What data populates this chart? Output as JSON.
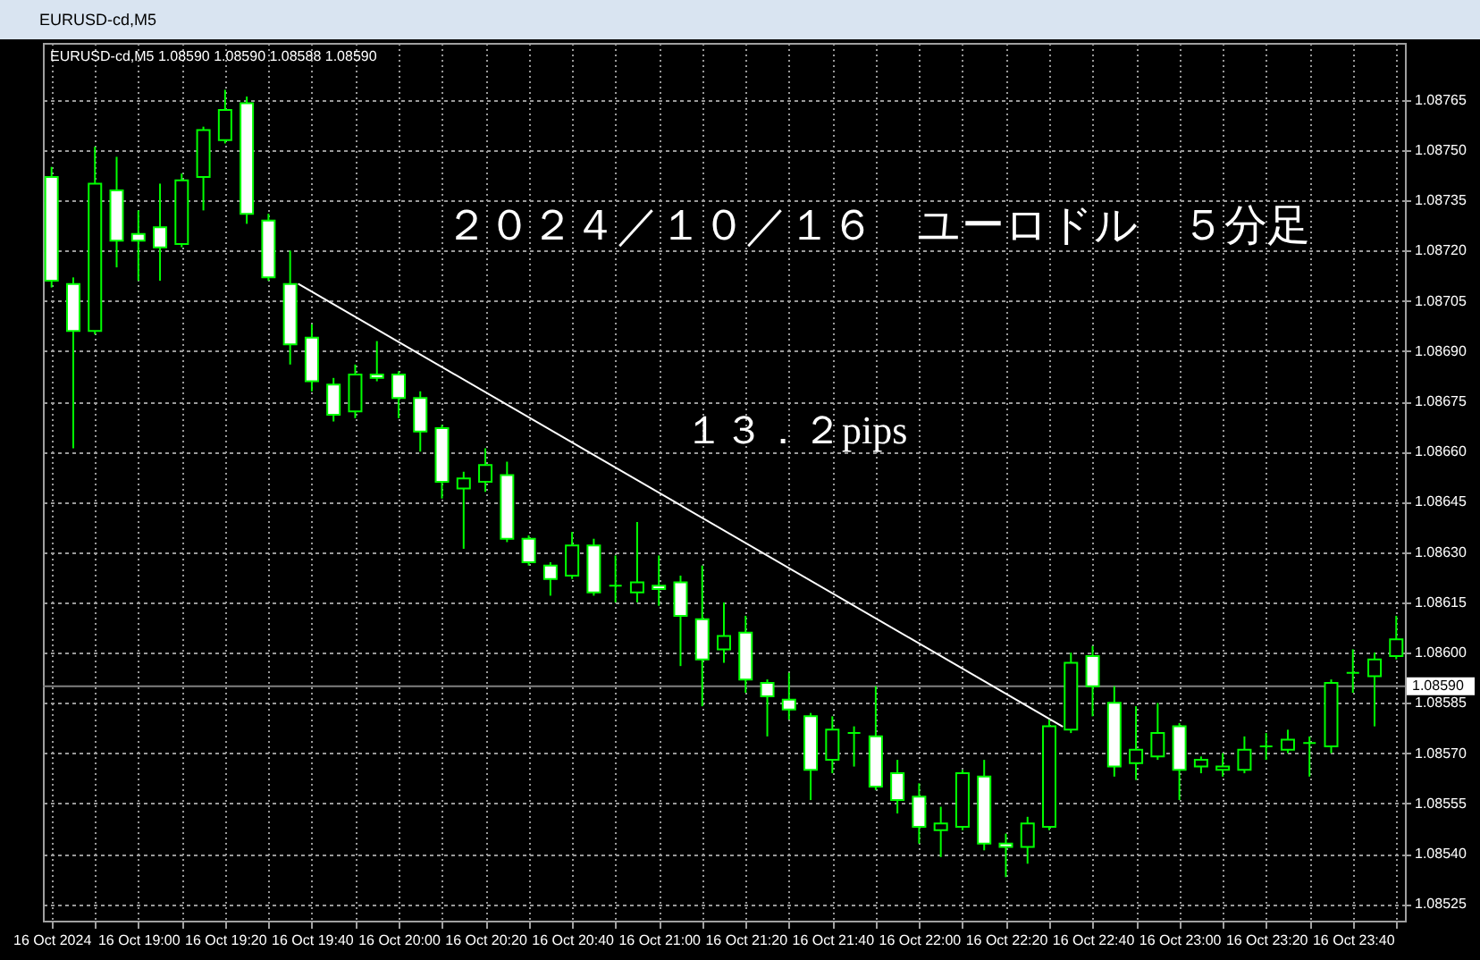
{
  "chart_data": {
    "type": "candlestick",
    "title": "EURUSD-cd,M5",
    "annotations": [
      "EURUSD-cd,M5 1.08590 1.08590 1.08588 1.08590",
      "２０２４／１０／１６　ユーロドル　５分足",
      "１３．２pips"
    ],
    "x": [
      "2024-10-16T18:40",
      "2024-10-16T18:45",
      "2024-10-16T18:50",
      "2024-10-16T18:55",
      "2024-10-16T19:00",
      "2024-10-16T19:05",
      "2024-10-16T19:10",
      "2024-10-16T19:15",
      "2024-10-16T19:20",
      "2024-10-16T19:25",
      "2024-10-16T19:30",
      "2024-10-16T19:35",
      "2024-10-16T19:40",
      "2024-10-16T19:45",
      "2024-10-16T19:50",
      "2024-10-16T19:55",
      "2024-10-16T20:00",
      "2024-10-16T20:05",
      "2024-10-16T20:10",
      "2024-10-16T20:15",
      "2024-10-16T20:20",
      "2024-10-16T20:25",
      "2024-10-16T20:30",
      "2024-10-16T20:35",
      "2024-10-16T20:40",
      "2024-10-16T20:45",
      "2024-10-16T20:50",
      "2024-10-16T20:55",
      "2024-10-16T21:00",
      "2024-10-16T21:05",
      "2024-10-16T21:10",
      "2024-10-16T21:15",
      "2024-10-16T21:20",
      "2024-10-16T21:25",
      "2024-10-16T21:30",
      "2024-10-16T21:35",
      "2024-10-16T21:40",
      "2024-10-16T21:45",
      "2024-10-16T21:50",
      "2024-10-16T21:55",
      "2024-10-16T22:00",
      "2024-10-16T22:05",
      "2024-10-16T22:10",
      "2024-10-16T22:15",
      "2024-10-16T22:20",
      "2024-10-16T22:25",
      "2024-10-16T22:30",
      "2024-10-16T22:35",
      "2024-10-16T22:40",
      "2024-10-16T22:45",
      "2024-10-16T22:50",
      "2024-10-16T22:55",
      "2024-10-16T23:00",
      "2024-10-16T23:05",
      "2024-10-16T23:10",
      "2024-10-16T23:15",
      "2024-10-16T23:20",
      "2024-10-16T23:25",
      "2024-10-16T23:30",
      "2024-10-16T23:35",
      "2024-10-16T23:40",
      "2024-10-16T23:45",
      "2024-10-16T23:50"
    ],
    "ohlc": [
      [
        1.08742,
        1.08745,
        1.08709,
        1.08711
      ],
      [
        1.0871,
        1.08712,
        1.08661,
        1.08696
      ],
      [
        1.08696,
        1.08751,
        1.08695,
        1.0874
      ],
      [
        1.08738,
        1.08748,
        1.08715,
        1.08723
      ],
      [
        1.08725,
        1.08732,
        1.08711,
        1.08723
      ],
      [
        1.08727,
        1.0874,
        1.08711,
        1.08721
      ],
      [
        1.08722,
        1.08743,
        1.08721,
        1.08741
      ],
      [
        1.08742,
        1.08757,
        1.08732,
        1.08756
      ],
      [
        1.08753,
        1.08768,
        1.08752,
        1.08762
      ],
      [
        1.08764,
        1.08766,
        1.08728,
        1.08731
      ],
      [
        1.08729,
        1.08731,
        1.08711,
        1.08712
      ],
      [
        1.0871,
        1.0872,
        1.08686,
        1.08692
      ],
      [
        1.08694,
        1.08698,
        1.08678,
        1.08681
      ],
      [
        1.0868,
        1.08682,
        1.08669,
        1.08671
      ],
      [
        1.08672,
        1.08686,
        1.0867,
        1.08683
      ],
      [
        1.08683,
        1.08693,
        1.08681,
        1.08682
      ],
      [
        1.08683,
        1.08684,
        1.0867,
        1.08676
      ],
      [
        1.08676,
        1.08678,
        1.0866,
        1.08666
      ],
      [
        1.08667,
        1.08668,
        1.08646,
        1.08651
      ],
      [
        1.08649,
        1.08654,
        1.08631,
        1.08652
      ],
      [
        1.08651,
        1.08661,
        1.08648,
        1.08656
      ],
      [
        1.08653,
        1.08657,
        1.08633,
        1.08634
      ],
      [
        1.08634,
        1.08635,
        1.08626,
        1.08627
      ],
      [
        1.08626,
        1.08627,
        1.08617,
        1.08622
      ],
      [
        1.08623,
        1.08636,
        1.08622,
        1.08632
      ],
      [
        1.08632,
        1.08634,
        1.08617,
        1.08618
      ],
      [
        1.0862,
        1.08629,
        1.08615,
        1.0862
      ],
      [
        1.08618,
        1.08639,
        1.08615,
        1.08621
      ],
      [
        1.0862,
        1.08629,
        1.08614,
        1.08619
      ],
      [
        1.08621,
        1.08623,
        1.08596,
        1.08611
      ],
      [
        1.0861,
        1.08626,
        1.08584,
        1.08598
      ],
      [
        1.08601,
        1.08615,
        1.08597,
        1.08605
      ],
      [
        1.08606,
        1.08611,
        1.08588,
        1.08592
      ],
      [
        1.08591,
        1.08592,
        1.08575,
        1.08587
      ],
      [
        1.08586,
        1.08594,
        1.0858,
        1.08583
      ],
      [
        1.08581,
        1.08582,
        1.08556,
        1.08565
      ],
      [
        1.08568,
        1.08581,
        1.08564,
        1.08577
      ],
      [
        1.08576,
        1.08578,
        1.08566,
        1.08576
      ],
      [
        1.08575,
        1.0859,
        1.08559,
        1.0856
      ],
      [
        1.08564,
        1.08568,
        1.08552,
        1.08556
      ],
      [
        1.08557,
        1.08561,
        1.08543,
        1.08548
      ],
      [
        1.08547,
        1.08554,
        1.08539,
        1.08549
      ],
      [
        1.08548,
        1.08565,
        1.08547,
        1.08564
      ],
      [
        1.08563,
        1.08568,
        1.08541,
        1.08543
      ],
      [
        1.08543,
        1.08546,
        1.08533,
        1.08542
      ],
      [
        1.08542,
        1.08551,
        1.08537,
        1.08549
      ],
      [
        1.08548,
        1.0858,
        1.08547,
        1.08578
      ],
      [
        1.08577,
        1.086,
        1.08576,
        1.08597
      ],
      [
        1.08599,
        1.08602,
        1.08581,
        1.0859
      ],
      [
        1.08585,
        1.0859,
        1.08563,
        1.08566
      ],
      [
        1.08567,
        1.08584,
        1.08562,
        1.08571
      ],
      [
        1.08569,
        1.08585,
        1.08568,
        1.08576
      ],
      [
        1.08578,
        1.08579,
        1.08556,
        1.08565
      ],
      [
        1.08566,
        1.08569,
        1.08564,
        1.08568
      ],
      [
        1.08565,
        1.0857,
        1.08563,
        1.08566
      ],
      [
        1.08565,
        1.08575,
        1.08564,
        1.08571
      ],
      [
        1.08572,
        1.08576,
        1.08568,
        1.08572
      ],
      [
        1.08571,
        1.08577,
        1.0857,
        1.08574
      ],
      [
        1.08573,
        1.08575,
        1.08563,
        1.08573
      ],
      [
        1.08572,
        1.08592,
        1.0857,
        1.08591
      ],
      [
        1.08594,
        1.08601,
        1.08588,
        1.08594
      ],
      [
        1.08593,
        1.086,
        1.08578,
        1.08598
      ],
      [
        1.08599,
        1.08611,
        1.08598,
        1.08604
      ]
    ],
    "color": "#00ff00",
    "colors": [
      "#ffffff",
      "#ffffff",
      "#000000",
      "#ffffff",
      "#ffffff",
      "#ffffff",
      "#000000",
      "#000000",
      "#000000",
      "#ffffff",
      "#ffffff",
      "#ffffff",
      "#ffffff",
      "#ffffff",
      "#000000",
      "#ffffff",
      "#ffffff",
      "#ffffff",
      "#ffffff",
      "#000000",
      "#000000",
      "#ffffff",
      "#ffffff",
      "#ffffff",
      "#000000",
      "#ffffff",
      "#00ff00",
      "#000000",
      "#ffffff",
      "#ffffff",
      "#ffffff",
      "#000000",
      "#ffffff",
      "#ffffff",
      "#ffffff",
      "#ffffff",
      "#000000",
      "#00ff00",
      "#ffffff",
      "#ffffff",
      "#ffffff",
      "#000000",
      "#000000",
      "#ffffff",
      "#ffffff",
      "#000000",
      "#000000",
      "#000000",
      "#ffffff",
      "#ffffff",
      "#000000",
      "#000000",
      "#ffffff",
      "#000000",
      "#000000",
      "#000000",
      "#00ff00",
      "#000000",
      "#00ff00",
      "#000000",
      "#00ff00",
      "#000000",
      "#000000"
    ],
    "series": [
      {
        "type": "line",
        "color": "#ffffff",
        "x": [
          "2024-10-16T19:37",
          "2024-10-16T22:33"
        ],
        "values": [
          1.0871,
          1.08578
        ]
      }
    ],
    "ref_lines": [
      {
        "axis": "y",
        "value": 1.0859,
        "label": "1.08590",
        "color": "#808080"
      }
    ],
    "xlim": [
      "2024-10-16T18:38",
      "2024-10-16T23:52"
    ],
    "xticks": [
      {
        "value": "2024-10-16T18:40",
        "label": "16 Oct 2024"
      },
      {
        "value": "2024-10-16T18:50",
        "label": null
      },
      {
        "value": "2024-10-16T19:00",
        "label": "16 Oct 19:00"
      },
      {
        "value": "2024-10-16T19:10",
        "label": null
      },
      {
        "value": "2024-10-16T19:20",
        "label": "16 Oct 19:20"
      },
      {
        "value": "2024-10-16T19:30",
        "label": null
      },
      {
        "value": "2024-10-16T19:40",
        "label": "16 Oct 19:40"
      },
      {
        "value": "2024-10-16T19:50",
        "label": null
      },
      {
        "value": "2024-10-16T20:00",
        "label": "16 Oct 20:00"
      },
      {
        "value": "2024-10-16T20:10",
        "label": null
      },
      {
        "value": "2024-10-16T20:20",
        "label": "16 Oct 20:20"
      },
      {
        "value": "2024-10-16T20:30",
        "label": null
      },
      {
        "value": "2024-10-16T20:40",
        "label": "16 Oct 20:40"
      },
      {
        "value": "2024-10-16T20:50",
        "label": null
      },
      {
        "value": "2024-10-16T21:00",
        "label": "16 Oct 21:00"
      },
      {
        "value": "2024-10-16T21:10",
        "label": null
      },
      {
        "value": "2024-10-16T21:20",
        "label": "16 Oct 21:20"
      },
      {
        "value": "2024-10-16T21:30",
        "label": null
      },
      {
        "value": "2024-10-16T21:40",
        "label": "16 Oct 21:40"
      },
      {
        "value": "2024-10-16T21:50",
        "label": null
      },
      {
        "value": "2024-10-16T22:00",
        "label": "16 Oct 22:00"
      },
      {
        "value": "2024-10-16T22:10",
        "label": null
      },
      {
        "value": "2024-10-16T22:20",
        "label": "16 Oct 22:20"
      },
      {
        "value": "2024-10-16T22:30",
        "label": null
      },
      {
        "value": "2024-10-16T22:40",
        "label": "16 Oct 22:40"
      },
      {
        "value": "2024-10-16T22:50",
        "label": null
      },
      {
        "value": "2024-10-16T23:00",
        "label": "16 Oct 23:00"
      },
      {
        "value": "2024-10-16T23:10",
        "label": null
      },
      {
        "value": "2024-10-16T23:20",
        "label": "16 Oct 23:20"
      },
      {
        "value": "2024-10-16T23:30",
        "label": null
      },
      {
        "value": "2024-10-16T23:40",
        "label": "16 Oct 23:40"
      },
      {
        "value": "2024-10-16T23:50",
        "label": null
      }
    ],
    "ylim": [
      1.0852,
      1.08782
    ],
    "yticks": [
      1.08525,
      {
        "value": 1.0854,
        "label": "1.08540"
      },
      1.08555,
      {
        "value": 1.0857,
        "label": "1.08570"
      },
      1.08585,
      {
        "value": 1.086,
        "label": "1.08600"
      },
      1.08615,
      {
        "value": 1.0863,
        "label": "1.08630"
      },
      1.08645,
      {
        "value": 1.0866,
        "label": "1.08660"
      },
      1.08675,
      {
        "value": 1.0869,
        "label": "1.08690"
      },
      1.08705,
      {
        "value": 1.0872,
        "label": "1.08720"
      },
      1.08735,
      {
        "value": 1.0875,
        "label": "1.08750"
      },
      1.08765
    ],
    "grid": true
  }
}
